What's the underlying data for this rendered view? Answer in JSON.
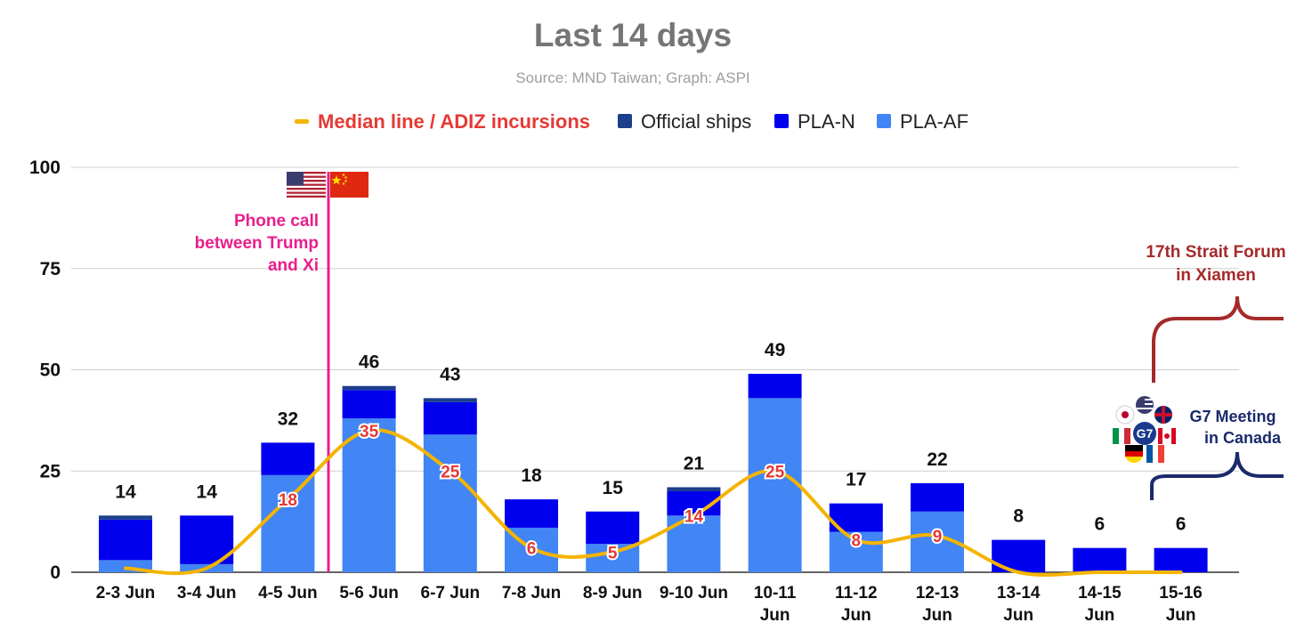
{
  "chart_data": {
    "type": "bar",
    "stacked": true,
    "title": "Last 14 days",
    "subtitle": "Source: MND Taiwan; Graph: ASPI",
    "legend_position": "top",
    "grid": true,
    "ylim": [
      0,
      100
    ],
    "yticks": [
      0,
      25,
      50,
      75,
      100
    ],
    "categories": [
      [
        "2-3 Jun"
      ],
      [
        "3-4 Jun"
      ],
      [
        "4-5 Jun"
      ],
      [
        "5-6 Jun"
      ],
      [
        "6-7 Jun"
      ],
      [
        "7-8 Jun"
      ],
      [
        "8-9 Jun"
      ],
      [
        "9-10 Jun"
      ],
      [
        "10-11",
        "Jun"
      ],
      [
        "11-12",
        "Jun"
      ],
      [
        "12-13",
        "Jun"
      ],
      [
        "13-14",
        "Jun"
      ],
      [
        "14-15",
        "Jun"
      ],
      [
        "15-16",
        "Jun"
      ]
    ],
    "series": [
      {
        "name": "PLA-AF",
        "color": "#4285f4",
        "values": [
          3,
          2,
          24,
          38,
          34,
          11,
          7,
          14,
          43,
          10,
          15,
          0,
          0,
          0
        ]
      },
      {
        "name": "PLA-N",
        "color": "#0000ee",
        "values": [
          10,
          12,
          8,
          7,
          8,
          7,
          8,
          6,
          6,
          7,
          7,
          8,
          6,
          6
        ]
      },
      {
        "name": "Official ships",
        "color": "#1c3f8c",
        "values": [
          1,
          0,
          0,
          1,
          1,
          0,
          0,
          1,
          0,
          0,
          0,
          0,
          0,
          0
        ]
      }
    ],
    "totals": [
      14,
      14,
      32,
      46,
      43,
      18,
      15,
      21,
      49,
      17,
      22,
      8,
      6,
      6
    ],
    "median_line": {
      "name": "Median line / ADIZ incursions",
      "color": "#f4b400",
      "label_color": "#e53935",
      "values": [
        1,
        1,
        18,
        35,
        25,
        6,
        5,
        14,
        25,
        8,
        9,
        0,
        0,
        0
      ],
      "labels": [
        "",
        "",
        "18",
        "35",
        "25",
        "6",
        "5",
        "14",
        "25",
        "8",
        "9",
        "",
        "",
        ""
      ]
    },
    "annotations": {
      "phone_call": {
        "lines": [
          "Phone call",
          "between Trump",
          "and Xi"
        ],
        "color": "#e91e8c"
      },
      "strait_forum": {
        "lines": [
          "17th Strait Forum",
          "in Xiamen"
        ],
        "color": "#a52a2a"
      },
      "g7": {
        "lines": [
          "G7 Meeting",
          "in Canada"
        ],
        "emblem_text": "G7",
        "color": "#1a2a6c"
      }
    }
  }
}
